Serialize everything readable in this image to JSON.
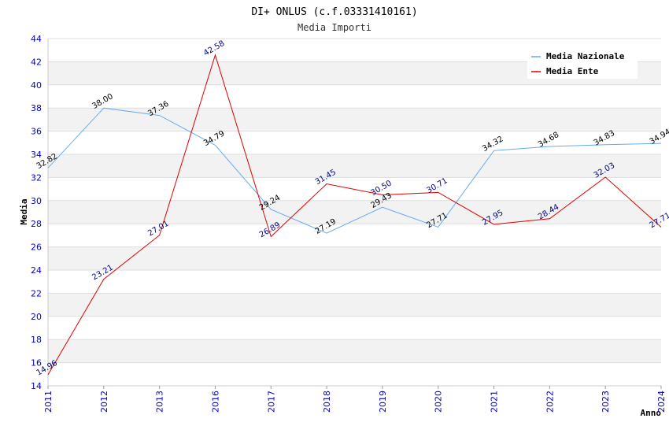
{
  "chart_data": {
    "type": "line",
    "title": "DI+ ONLUS (c.f.03331410161)",
    "subtitle": "Media Importi",
    "xlabel": "Anno",
    "ylabel": "Media",
    "ylim": [
      14,
      44
    ],
    "yticks": [
      14,
      16,
      18,
      20,
      22,
      24,
      26,
      28,
      30,
      32,
      34,
      36,
      38,
      40,
      42,
      44
    ],
    "categories": [
      "2011",
      "2012",
      "2013",
      "2016",
      "2017",
      "2018",
      "2019",
      "2020",
      "2021",
      "2022",
      "2023",
      "2024"
    ],
    "legend_position": "top-right",
    "series": [
      {
        "name": "Media Nazionale",
        "color": "#66aaee",
        "label_color": "#000000",
        "values": [
          32.82,
          38.0,
          37.36,
          34.79,
          29.24,
          27.19,
          29.43,
          27.71,
          34.32,
          34.68,
          34.83,
          34.94
        ],
        "labels": [
          "32.82",
          "38.00",
          "37.36",
          "34.79",
          "29.24",
          "27.19",
          "29.43",
          "27.71",
          "34.32",
          "34.68",
          "34.83",
          "34.94"
        ]
      },
      {
        "name": "Media Ente",
        "color": "#dd0000",
        "label_color": "#000080",
        "values": [
          14.96,
          23.21,
          27.01,
          42.58,
          26.89,
          31.45,
          30.5,
          30.71,
          27.95,
          28.44,
          32.03,
          27.71
        ],
        "labels": [
          "14.96",
          "23.21",
          "27.01",
          "42.58",
          "26.89",
          "31.45",
          "30.50",
          "30.71",
          "27.95",
          "28.44",
          "32.03",
          "27.71"
        ]
      }
    ]
  }
}
